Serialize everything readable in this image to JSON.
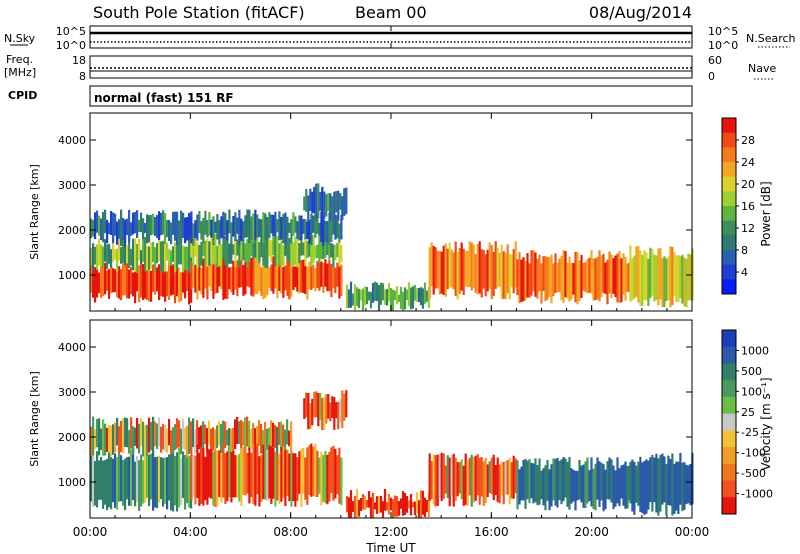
{
  "header": {
    "station": "South Pole Station (fitACF)",
    "beam": "Beam 00",
    "date": "08/Aug/2014"
  },
  "noise_panel": {
    "left_label": "N.Sky",
    "left_ticks": [
      "10^5",
      "10^0"
    ],
    "right_label": "N.Search",
    "right_ticks": [
      "10^5",
      "10^0"
    ]
  },
  "freq_panel": {
    "left_label_1": "Freq.",
    "left_label_2": "[MHz]",
    "left_ticks": [
      "18",
      "8"
    ],
    "right_label": "Nave",
    "right_ticks": [
      "60",
      "0"
    ]
  },
  "cpid_panel": {
    "label": "CPID",
    "text": "normal (fast) 151 RF"
  },
  "power_colorbar": {
    "label": "Power [dB]",
    "ticks": [
      "28",
      "24",
      "20",
      "16",
      "12",
      "8",
      "4"
    ],
    "colors": [
      "#0a18ff",
      "#1e3ed0",
      "#2a5fb3",
      "#2f7a73",
      "#3c8f5a",
      "#5db43f",
      "#9bd232",
      "#d8d22a",
      "#f2a623",
      "#f77a1d",
      "#f24a17",
      "#e6140d"
    ]
  },
  "velocity_colorbar": {
    "label": "Velocity [m s⁻¹]",
    "ticks": [
      "1000",
      "500",
      "100",
      "25",
      "-25",
      "-100",
      "-500",
      "-1000"
    ],
    "colors": [
      "#1b3fb8",
      "#2a5aa8",
      "#2f7f6a",
      "#4a9a5f",
      "#67c043",
      "#c8c8c8",
      "#f2c33a",
      "#f39c28",
      "#f27520",
      "#f2501c",
      "#e6140d"
    ]
  },
  "x_axis": {
    "ticks": [
      "00:00",
      "04:00",
      "08:00",
      "12:00",
      "16:00",
      "20:00",
      "00:00"
    ],
    "label": "Time UT"
  },
  "chart_data": [
    {
      "type": "heatmap",
      "quantity": "Power",
      "ylabel": "Slant Range [km]",
      "xlabel": "Time UT",
      "ylim": [
        200,
        4600
      ],
      "yticks": [
        1000,
        2000,
        3000,
        4000
      ],
      "xlim": [
        0,
        24
      ],
      "x_tick_labels": [
        "00:00",
        "04:00",
        "08:00",
        "12:00",
        "16:00",
        "20:00",
        "00:00"
      ],
      "colorbar": {
        "label": "Power [dB]",
        "range": [
          0,
          30
        ],
        "ticks": [
          4,
          8,
          12,
          16,
          20,
          24,
          28
        ]
      },
      "bands": [
        {
          "t0": 0.0,
          "t1": 4.0,
          "r0": 500,
          "r1": 1200,
          "value": 27
        },
        {
          "t0": 0.0,
          "t1": 4.0,
          "r0": 1200,
          "r1": 1700,
          "value": 14
        },
        {
          "t0": 0.0,
          "t1": 4.0,
          "r0": 1800,
          "r1": 2300,
          "value": 8
        },
        {
          "t0": 4.0,
          "t1": 10.0,
          "r0": 600,
          "r1": 1300,
          "value": 26
        },
        {
          "t0": 4.0,
          "t1": 10.0,
          "r0": 1300,
          "r1": 1800,
          "value": 14
        },
        {
          "t0": 4.0,
          "t1": 10.0,
          "r0": 1800,
          "r1": 2300,
          "value": 8
        },
        {
          "t0": 8.5,
          "t1": 10.2,
          "r0": 2300,
          "r1": 2900,
          "value": 9
        },
        {
          "t0": 10.2,
          "t1": 13.5,
          "r0": 300,
          "r1": 700,
          "value": 12
        },
        {
          "t0": 13.5,
          "t1": 17.0,
          "r0": 600,
          "r1": 1600,
          "value": 24
        },
        {
          "t0": 17.0,
          "t1": 21.5,
          "r0": 500,
          "r1": 1400,
          "value": 25
        },
        {
          "t0": 21.5,
          "t1": 24.0,
          "r0": 400,
          "r1": 1500,
          "value": 18
        }
      ]
    },
    {
      "type": "heatmap",
      "quantity": "Velocity",
      "ylabel": "Slant Range [km]",
      "xlabel": "Time UT",
      "ylim": [
        200,
        4600
      ],
      "yticks": [
        1000,
        2000,
        3000,
        4000
      ],
      "xlim": [
        0,
        24
      ],
      "x_tick_labels": [
        "00:00",
        "04:00",
        "08:00",
        "12:00",
        "16:00",
        "20:00",
        "00:00"
      ],
      "colorbar": {
        "label": "Velocity [m s⁻¹]",
        "range": [
          -1000,
          1000
        ],
        "ticks": [
          1000,
          500,
          100,
          25,
          -25,
          -100,
          -500,
          -1000
        ]
      },
      "bands": [
        {
          "t0": 0.0,
          "t1": 4.0,
          "r0": 500,
          "r1": 1600,
          "value": 300
        },
        {
          "t0": 0.0,
          "t1": 8.0,
          "r0": 1700,
          "r1": 2300,
          "value": 0
        },
        {
          "t0": 4.0,
          "t1": 10.0,
          "r0": 600,
          "r1": 1700,
          "value": -200
        },
        {
          "t0": 8.5,
          "t1": 10.2,
          "r0": 2300,
          "r1": 2900,
          "value": -200
        },
        {
          "t0": 10.2,
          "t1": 13.5,
          "r0": 300,
          "r1": 700,
          "value": -300
        },
        {
          "t0": 13.5,
          "t1": 17.0,
          "r0": 600,
          "r1": 1500,
          "value": -150
        },
        {
          "t0": 17.0,
          "t1": 21.5,
          "r0": 500,
          "r1": 1400,
          "value": 500
        },
        {
          "t0": 21.5,
          "t1": 24.0,
          "r0": 400,
          "r1": 1500,
          "value": 600
        }
      ]
    }
  ]
}
